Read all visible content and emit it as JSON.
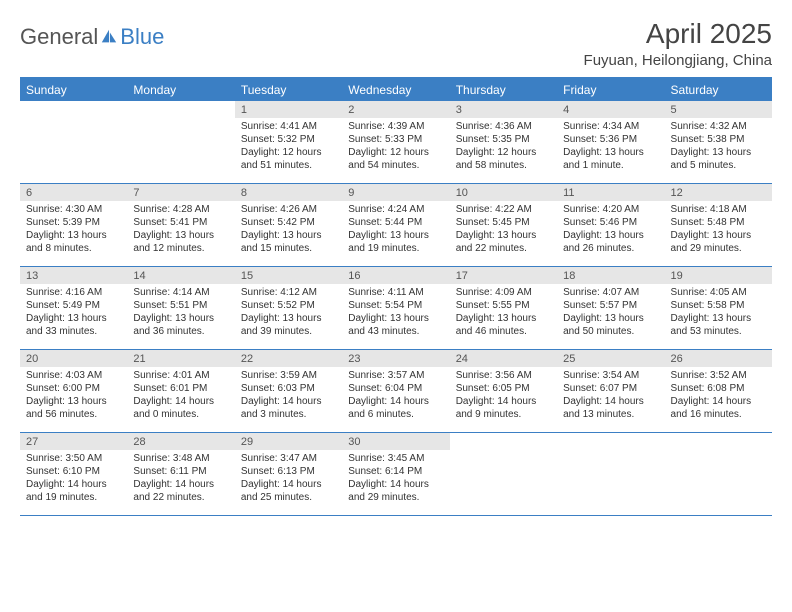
{
  "logo": {
    "text1": "General",
    "text2": "Blue"
  },
  "title": "April 2025",
  "location": "Fuyuan, Heilongjiang, China",
  "colors": {
    "accent": "#3b7fc4",
    "daybar": "#e6e6e6",
    "text": "#333333",
    "background": "#ffffff"
  },
  "weekdays": [
    "Sunday",
    "Monday",
    "Tuesday",
    "Wednesday",
    "Thursday",
    "Friday",
    "Saturday"
  ],
  "weeks": [
    [
      {
        "n": "",
        "sr": "",
        "ss": "",
        "dl": ""
      },
      {
        "n": "",
        "sr": "",
        "ss": "",
        "dl": ""
      },
      {
        "n": "1",
        "sr": "Sunrise: 4:41 AM",
        "ss": "Sunset: 5:32 PM",
        "dl": "Daylight: 12 hours and 51 minutes."
      },
      {
        "n": "2",
        "sr": "Sunrise: 4:39 AM",
        "ss": "Sunset: 5:33 PM",
        "dl": "Daylight: 12 hours and 54 minutes."
      },
      {
        "n": "3",
        "sr": "Sunrise: 4:36 AM",
        "ss": "Sunset: 5:35 PM",
        "dl": "Daylight: 12 hours and 58 minutes."
      },
      {
        "n": "4",
        "sr": "Sunrise: 4:34 AM",
        "ss": "Sunset: 5:36 PM",
        "dl": "Daylight: 13 hours and 1 minute."
      },
      {
        "n": "5",
        "sr": "Sunrise: 4:32 AM",
        "ss": "Sunset: 5:38 PM",
        "dl": "Daylight: 13 hours and 5 minutes."
      }
    ],
    [
      {
        "n": "6",
        "sr": "Sunrise: 4:30 AM",
        "ss": "Sunset: 5:39 PM",
        "dl": "Daylight: 13 hours and 8 minutes."
      },
      {
        "n": "7",
        "sr": "Sunrise: 4:28 AM",
        "ss": "Sunset: 5:41 PM",
        "dl": "Daylight: 13 hours and 12 minutes."
      },
      {
        "n": "8",
        "sr": "Sunrise: 4:26 AM",
        "ss": "Sunset: 5:42 PM",
        "dl": "Daylight: 13 hours and 15 minutes."
      },
      {
        "n": "9",
        "sr": "Sunrise: 4:24 AM",
        "ss": "Sunset: 5:44 PM",
        "dl": "Daylight: 13 hours and 19 minutes."
      },
      {
        "n": "10",
        "sr": "Sunrise: 4:22 AM",
        "ss": "Sunset: 5:45 PM",
        "dl": "Daylight: 13 hours and 22 minutes."
      },
      {
        "n": "11",
        "sr": "Sunrise: 4:20 AM",
        "ss": "Sunset: 5:46 PM",
        "dl": "Daylight: 13 hours and 26 minutes."
      },
      {
        "n": "12",
        "sr": "Sunrise: 4:18 AM",
        "ss": "Sunset: 5:48 PM",
        "dl": "Daylight: 13 hours and 29 minutes."
      }
    ],
    [
      {
        "n": "13",
        "sr": "Sunrise: 4:16 AM",
        "ss": "Sunset: 5:49 PM",
        "dl": "Daylight: 13 hours and 33 minutes."
      },
      {
        "n": "14",
        "sr": "Sunrise: 4:14 AM",
        "ss": "Sunset: 5:51 PM",
        "dl": "Daylight: 13 hours and 36 minutes."
      },
      {
        "n": "15",
        "sr": "Sunrise: 4:12 AM",
        "ss": "Sunset: 5:52 PM",
        "dl": "Daylight: 13 hours and 39 minutes."
      },
      {
        "n": "16",
        "sr": "Sunrise: 4:11 AM",
        "ss": "Sunset: 5:54 PM",
        "dl": "Daylight: 13 hours and 43 minutes."
      },
      {
        "n": "17",
        "sr": "Sunrise: 4:09 AM",
        "ss": "Sunset: 5:55 PM",
        "dl": "Daylight: 13 hours and 46 minutes."
      },
      {
        "n": "18",
        "sr": "Sunrise: 4:07 AM",
        "ss": "Sunset: 5:57 PM",
        "dl": "Daylight: 13 hours and 50 minutes."
      },
      {
        "n": "19",
        "sr": "Sunrise: 4:05 AM",
        "ss": "Sunset: 5:58 PM",
        "dl": "Daylight: 13 hours and 53 minutes."
      }
    ],
    [
      {
        "n": "20",
        "sr": "Sunrise: 4:03 AM",
        "ss": "Sunset: 6:00 PM",
        "dl": "Daylight: 13 hours and 56 minutes."
      },
      {
        "n": "21",
        "sr": "Sunrise: 4:01 AM",
        "ss": "Sunset: 6:01 PM",
        "dl": "Daylight: 14 hours and 0 minutes."
      },
      {
        "n": "22",
        "sr": "Sunrise: 3:59 AM",
        "ss": "Sunset: 6:03 PM",
        "dl": "Daylight: 14 hours and 3 minutes."
      },
      {
        "n": "23",
        "sr": "Sunrise: 3:57 AM",
        "ss": "Sunset: 6:04 PM",
        "dl": "Daylight: 14 hours and 6 minutes."
      },
      {
        "n": "24",
        "sr": "Sunrise: 3:56 AM",
        "ss": "Sunset: 6:05 PM",
        "dl": "Daylight: 14 hours and 9 minutes."
      },
      {
        "n": "25",
        "sr": "Sunrise: 3:54 AM",
        "ss": "Sunset: 6:07 PM",
        "dl": "Daylight: 14 hours and 13 minutes."
      },
      {
        "n": "26",
        "sr": "Sunrise: 3:52 AM",
        "ss": "Sunset: 6:08 PM",
        "dl": "Daylight: 14 hours and 16 minutes."
      }
    ],
    [
      {
        "n": "27",
        "sr": "Sunrise: 3:50 AM",
        "ss": "Sunset: 6:10 PM",
        "dl": "Daylight: 14 hours and 19 minutes."
      },
      {
        "n": "28",
        "sr": "Sunrise: 3:48 AM",
        "ss": "Sunset: 6:11 PM",
        "dl": "Daylight: 14 hours and 22 minutes."
      },
      {
        "n": "29",
        "sr": "Sunrise: 3:47 AM",
        "ss": "Sunset: 6:13 PM",
        "dl": "Daylight: 14 hours and 25 minutes."
      },
      {
        "n": "30",
        "sr": "Sunrise: 3:45 AM",
        "ss": "Sunset: 6:14 PM",
        "dl": "Daylight: 14 hours and 29 minutes."
      },
      {
        "n": "",
        "sr": "",
        "ss": "",
        "dl": ""
      },
      {
        "n": "",
        "sr": "",
        "ss": "",
        "dl": ""
      },
      {
        "n": "",
        "sr": "",
        "ss": "",
        "dl": ""
      }
    ]
  ]
}
